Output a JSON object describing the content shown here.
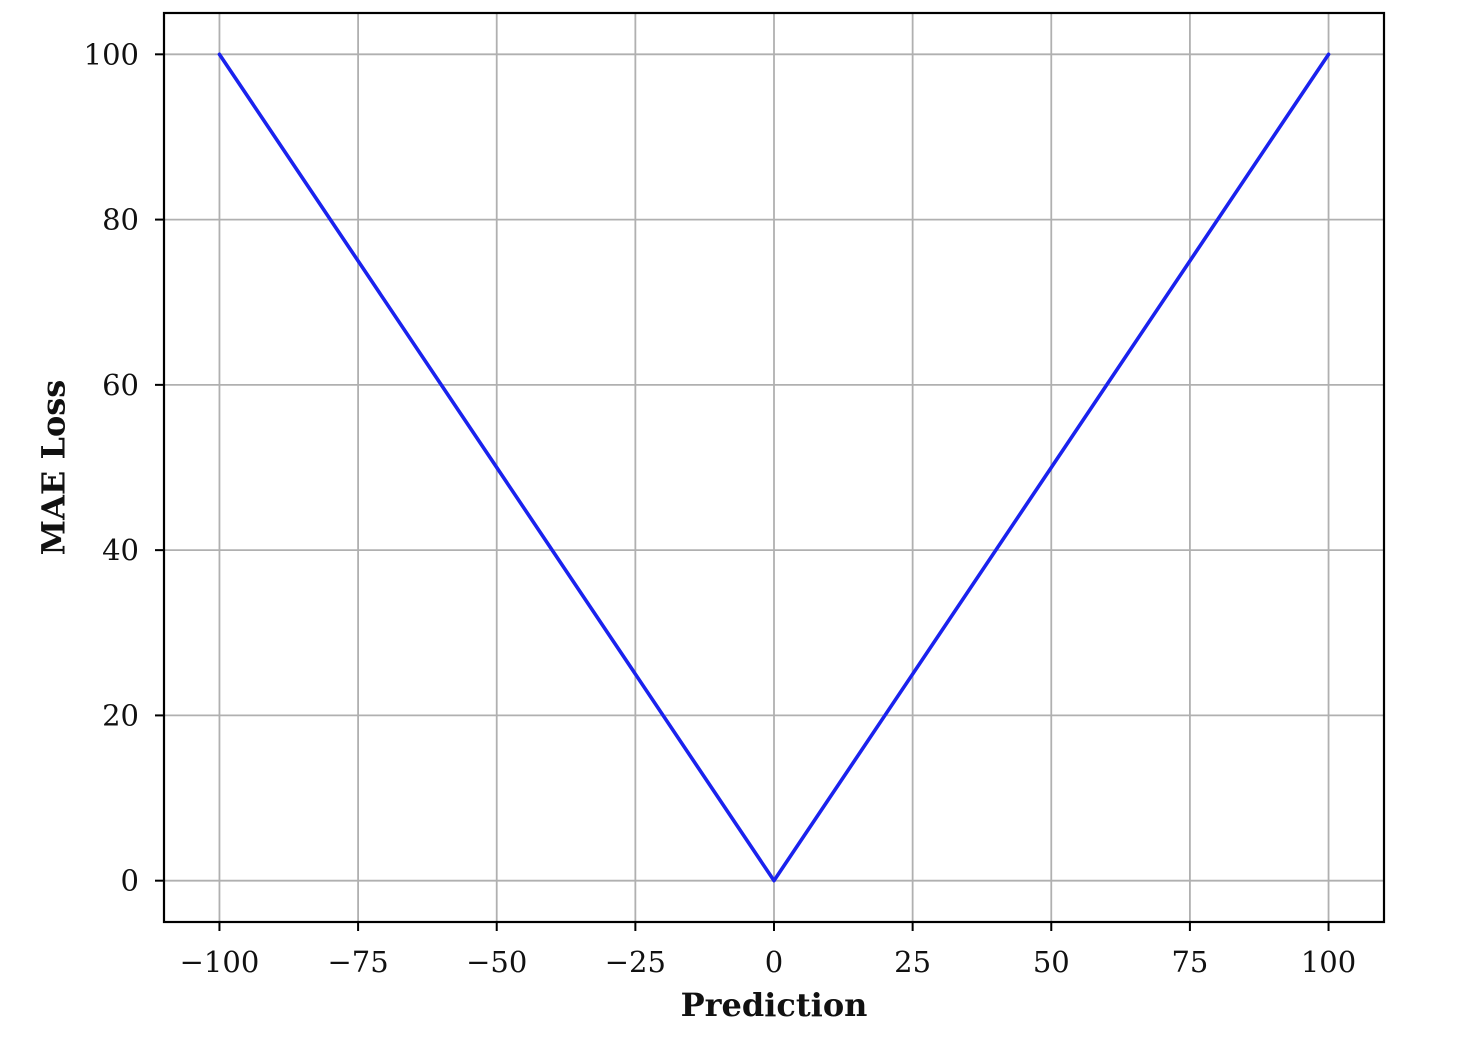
{
  "chart_data": {
    "type": "line",
    "title": "",
    "xlabel": "Prediction",
    "ylabel": "MAE Loss",
    "xlim": [
      -110,
      110
    ],
    "ylim": [
      -5,
      105
    ],
    "xticks": [
      -100,
      -75,
      -50,
      -25,
      0,
      25,
      50,
      75,
      100
    ],
    "xtick_labels": [
      "−100",
      "−75",
      "−50",
      "−25",
      "0",
      "25",
      "50",
      "75",
      "100"
    ],
    "yticks": [
      0,
      20,
      40,
      60,
      80,
      100
    ],
    "ytick_labels": [
      "0",
      "20",
      "40",
      "60",
      "80",
      "100"
    ],
    "grid": true,
    "legend": "none",
    "series": [
      {
        "color": "#1a22ee",
        "x": [
          -100,
          0,
          100
        ],
        "y": [
          100,
          0,
          100
        ]
      }
    ]
  }
}
